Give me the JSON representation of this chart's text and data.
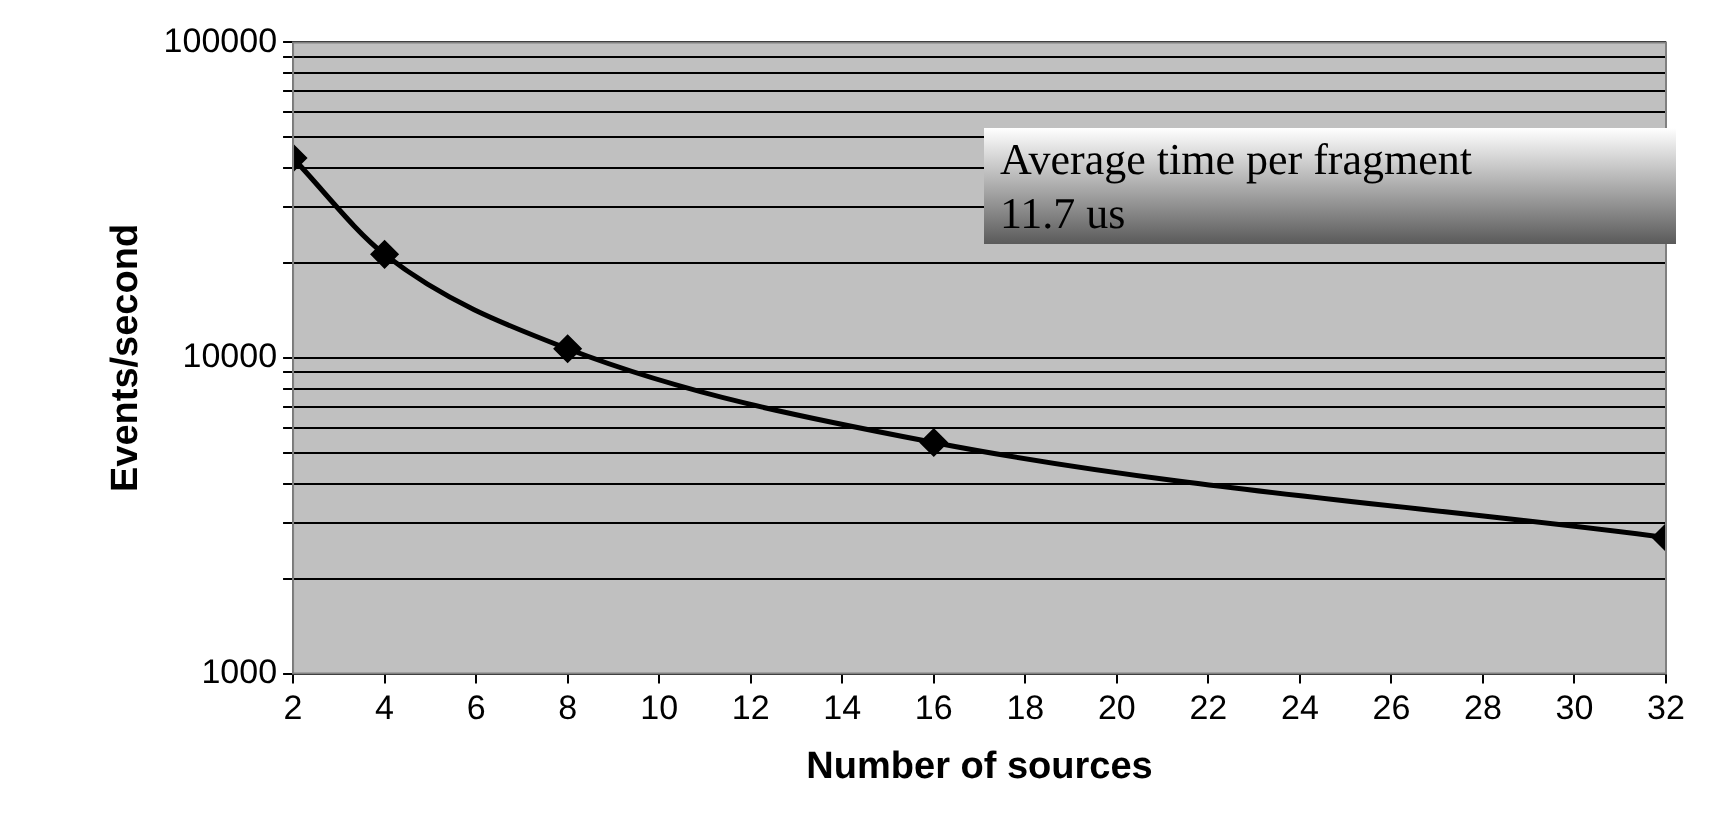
{
  "chart_data": {
    "type": "line",
    "xlabel": "Number of sources",
    "ylabel": "Events/second",
    "x": [
      2,
      4,
      8,
      16,
      32
    ],
    "series": [
      {
        "color": "#000000",
        "values": [
          43000,
          21300,
          10700,
          5400,
          2700
        ]
      }
    ],
    "xlim": [
      2,
      32
    ],
    "xticks": [
      2,
      4,
      6,
      8,
      10,
      12,
      14,
      16,
      18,
      20,
      22,
      24,
      26,
      28,
      30,
      32
    ],
    "ylim": [
      1000,
      100000
    ],
    "yticks": [
      1000,
      {
        "value": 2000,
        "label": null
      },
      {
        "value": 3000,
        "label": null
      },
      {
        "value": 4000,
        "label": null
      },
      {
        "value": 5000,
        "label": null
      },
      {
        "value": 6000,
        "label": null
      },
      {
        "value": 7000,
        "label": null
      },
      {
        "value": 8000,
        "label": null
      },
      {
        "value": 9000,
        "label": null
      },
      10000,
      {
        "value": 20000,
        "label": null
      },
      {
        "value": 30000,
        "label": null
      },
      {
        "value": 40000,
        "label": null
      },
      {
        "value": 50000,
        "label": null
      },
      {
        "value": 60000,
        "label": null
      },
      {
        "value": 70000,
        "label": null
      },
      {
        "value": 80000,
        "label": null
      },
      {
        "value": 90000,
        "label": null
      },
      100000
    ],
    "log": "y",
    "grid": "y",
    "marker": "diamond",
    "line_style": "solid",
    "annotations": [
      "Average time per fragment\n11.7 us"
    ]
  }
}
